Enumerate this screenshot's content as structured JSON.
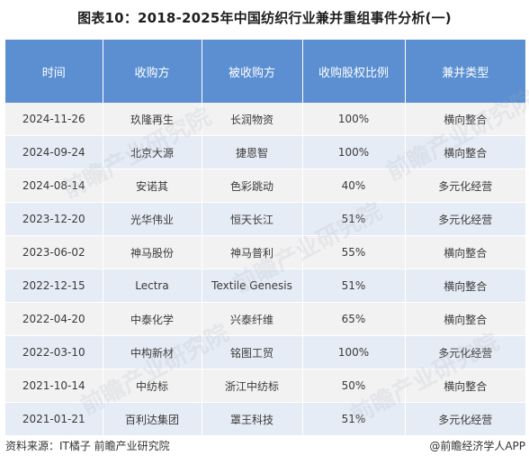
{
  "title": "图表10：2018-2025年中国纺织行业兼并重组事件分析(一)",
  "table": {
    "headers": [
      "时间",
      "收购方",
      "被收购方",
      "收购股权比例",
      "兼并类型"
    ],
    "rows": [
      [
        "2024-11-26",
        "玖隆再生",
        "长润物资",
        "100%",
        "横向整合"
      ],
      [
        "2024-09-24",
        "北京大源",
        "捷恩智",
        "100%",
        "横向整合"
      ],
      [
        "2024-08-14",
        "安诺其",
        "色彩跳动",
        "40%",
        "多元化经营"
      ],
      [
        "2023-12-20",
        "光华伟业",
        "恒天长江",
        "51%",
        "多元化经营"
      ],
      [
        "2023-06-02",
        "神马股份",
        "神马普利",
        "55%",
        "横向整合"
      ],
      [
        "2022-12-15",
        "Lectra",
        "Textile Genesis",
        "51%",
        "横向整合"
      ],
      [
        "2022-04-20",
        "中泰化学",
        "兴泰纤维",
        "65%",
        "横向整合"
      ],
      [
        "2022-03-10",
        "中构新材",
        "铭图工贸",
        "100%",
        "多元化经营"
      ],
      [
        "2021-10-14",
        "中纺标",
        "浙江中纺标",
        "50%",
        "横向整合"
      ],
      [
        "2021-01-21",
        "百利达集团",
        "罩王科技",
        "51%",
        "多元化经营"
      ]
    ]
  },
  "footer": {
    "source": "资料来源：IT橘子 前瞻产业研究院",
    "brand": "@前瞻经济学人APP"
  },
  "watermark": "前瞻产业研究院"
}
